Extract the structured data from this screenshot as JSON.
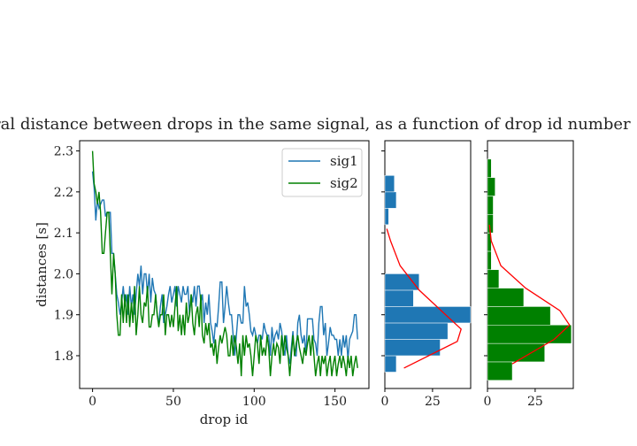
{
  "chart_data": [
    {
      "type": "line",
      "title": "Temporal distance between drops in the same signal, as a function of drop id number",
      "xlabel": "drop id",
      "ylabel": "distances [s]",
      "xlim": [
        -8,
        171
      ],
      "ylim": [
        1.72,
        2.325
      ],
      "xticks": [
        0,
        50,
        100,
        150
      ],
      "yticks": [
        1.8,
        1.9,
        2.0,
        2.1,
        2.2,
        2.3
      ],
      "legend": "top-right",
      "series": [
        {
          "name": "sig1",
          "color": "#1f77b4",
          "values": [
            2.25,
            2.21,
            2.13,
            2.18,
            2.16,
            2.17,
            2.18,
            2.18,
            2.14,
            2.15,
            2.15,
            2.15,
            2.05,
            2.05,
            2.0,
            1.95,
            1.93,
            1.9,
            1.93,
            1.97,
            1.92,
            1.95,
            1.9,
            1.97,
            1.92,
            1.95,
            1.9,
            1.95,
            2.0,
            1.97,
            2.02,
            1.95,
            2.0,
            2.0,
            1.95,
            2.0,
            1.93,
            1.99,
            1.96,
            1.95,
            1.9,
            1.88,
            1.92,
            1.95,
            1.88,
            1.9,
            1.92,
            1.95,
            1.97,
            1.93,
            1.95,
            1.97,
            1.92,
            1.97,
            1.95,
            1.93,
            1.97,
            1.95,
            1.95,
            1.97,
            1.9,
            1.95,
            1.93,
            1.97,
            1.92,
            1.97,
            1.97,
            1.93,
            1.95,
            1.88,
            1.93,
            1.9,
            1.95,
            1.88,
            1.86,
            1.83,
            1.88,
            1.87,
            1.92,
            1.98,
            1.98,
            1.88,
            1.92,
            1.97,
            1.93,
            1.9,
            1.9,
            1.85,
            1.8,
            1.85,
            1.9,
            1.9,
            1.88,
            1.88,
            1.97,
            1.92,
            1.93,
            1.9,
            1.86,
            1.85,
            1.87,
            1.85,
            1.83,
            1.85,
            1.85,
            1.84,
            1.88,
            1.86,
            1.85,
            1.85,
            1.8,
            1.87,
            1.83,
            1.85,
            1.86,
            1.84,
            1.88,
            1.86,
            1.82,
            1.8,
            1.85,
            1.8,
            1.78,
            1.82,
            1.86,
            1.8,
            1.8,
            1.88,
            1.9,
            1.85,
            1.83,
            1.85,
            1.8,
            1.89,
            1.89,
            1.89,
            1.89,
            1.84,
            1.83,
            1.8,
            1.88,
            1.92,
            1.92,
            1.85,
            1.88,
            1.8,
            1.83,
            1.87,
            1.85,
            1.85,
            1.84,
            1.84,
            1.8,
            1.84,
            1.8,
            1.85,
            1.82,
            1.85,
            1.79,
            1.84,
            1.85,
            1.86,
            1.9,
            1.9,
            1.84
          ]
        },
        {
          "name": "sig2",
          "color": "#008000",
          "values": [
            2.3,
            2.22,
            2.2,
            2.17,
            2.2,
            2.15,
            2.05,
            2.05,
            2.1,
            2.15,
            2.15,
            2.05,
            1.95,
            2.05,
            2.0,
            1.9,
            1.85,
            1.85,
            1.95,
            1.88,
            1.95,
            1.88,
            1.95,
            1.87,
            1.93,
            1.88,
            1.97,
            1.85,
            1.9,
            1.97,
            1.9,
            1.88,
            1.93,
            1.92,
            1.97,
            1.87,
            1.87,
            1.9,
            1.9,
            1.95,
            1.9,
            1.87,
            1.9,
            1.9,
            1.95,
            1.85,
            1.9,
            1.9,
            1.87,
            1.9,
            1.87,
            1.92,
            1.97,
            1.86,
            1.9,
            1.85,
            1.9,
            1.85,
            1.93,
            1.88,
            1.9,
            1.95,
            1.88,
            1.85,
            1.9,
            1.92,
            1.87,
            1.95,
            1.85,
            1.83,
            1.88,
            1.85,
            1.88,
            1.82,
            1.83,
            1.8,
            1.84,
            1.78,
            1.82,
            1.85,
            1.83,
            1.85,
            1.87,
            1.85,
            1.8,
            1.8,
            1.85,
            1.8,
            1.85,
            1.82,
            1.78,
            1.83,
            1.75,
            1.85,
            1.8,
            1.85,
            1.82,
            1.83,
            1.8,
            1.75,
            1.8,
            1.85,
            1.83,
            1.78,
            1.85,
            1.8,
            1.82,
            1.8,
            1.85,
            1.82,
            1.75,
            1.8,
            1.83,
            1.8,
            1.83,
            1.82,
            1.78,
            1.85,
            1.8,
            1.85,
            1.82,
            1.8,
            1.75,
            1.8,
            1.85,
            1.8,
            1.83,
            1.85,
            1.82,
            1.8,
            1.78,
            1.82,
            1.8,
            1.83,
            1.85,
            1.8,
            1.85,
            1.8,
            1.75,
            1.78,
            1.8,
            1.75,
            1.8,
            1.78,
            1.8,
            1.75,
            1.78,
            1.8,
            1.75,
            1.78,
            1.8,
            1.75,
            1.78,
            1.8,
            1.77,
            1.8,
            1.78,
            1.75,
            1.8,
            1.77,
            1.8,
            1.75,
            1.78,
            1.8,
            1.77
          ]
        }
      ]
    },
    {
      "type": "bar",
      "orientation": "horizontal",
      "bar_color": "#1f77b4",
      "curve_color": "#ff0000",
      "xticks": [
        0,
        25
      ],
      "xlim": [
        0,
        45
      ],
      "ylim": [
        1.72,
        2.325
      ],
      "bins": [
        1.76,
        1.8,
        1.84,
        1.88,
        1.92,
        1.96,
        2.0,
        2.04,
        2.08,
        2.12,
        2.16,
        2.2,
        2.24,
        2.28
      ],
      "values": [
        6,
        29,
        33,
        45,
        15,
        18,
        0,
        0,
        0,
        2,
        6,
        5,
        0,
        1
      ],
      "curve": [
        [
          10,
          1.77
        ],
        [
          38,
          1.835
        ],
        [
          40,
          1.865
        ],
        [
          18,
          1.96
        ],
        [
          8,
          2.02
        ],
        [
          3,
          2.08
        ],
        [
          1,
          2.11
        ]
      ]
    },
    {
      "type": "bar",
      "orientation": "horizontal",
      "bar_color": "#008000",
      "curve_color": "#ff0000",
      "xticks": [
        0,
        25
      ],
      "xlim": [
        0,
        45
      ],
      "ylim": [
        1.72,
        2.325
      ],
      "bins": [
        1.74,
        1.785,
        1.83,
        1.875,
        1.92,
        1.965,
        2.01,
        2.055,
        2.1,
        2.145,
        2.19,
        2.235,
        2.28
      ],
      "values": [
        13,
        30,
        44,
        33,
        19,
        6,
        2,
        2,
        3,
        3,
        4,
        2,
        1
      ],
      "curve": [
        [
          13,
          1.78
        ],
        [
          35,
          1.84
        ],
        [
          43,
          1.875
        ],
        [
          38,
          1.91
        ],
        [
          20,
          1.965
        ],
        [
          7,
          2.02
        ],
        [
          2,
          2.08
        ],
        [
          1,
          2.12
        ]
      ]
    }
  ]
}
